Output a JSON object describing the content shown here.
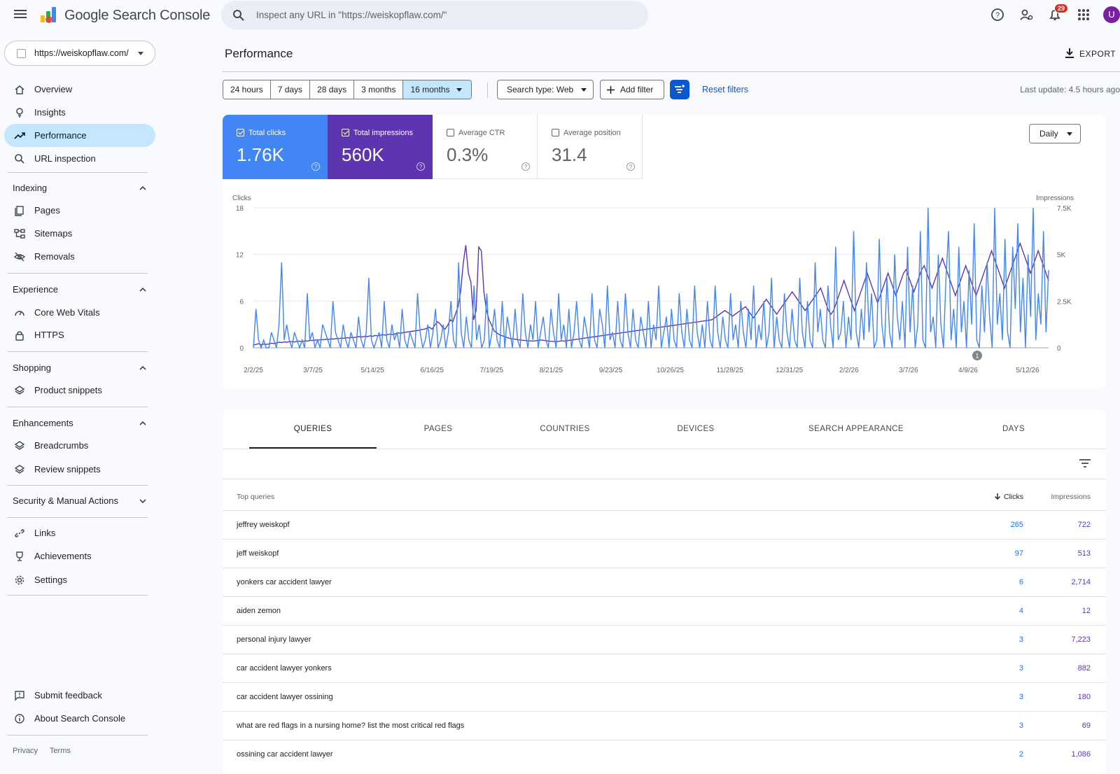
{
  "app": {
    "title": "Google Search Console"
  },
  "search": {
    "placeholder": "Inspect any URL in \"https://weiskopflaw.com/\""
  },
  "topbar": {
    "notifications_count": "29",
    "avatar_letter": "U"
  },
  "property": {
    "url": "https://weiskopflaw.com/"
  },
  "sidebar": {
    "items": [
      {
        "label": "Overview",
        "icon": "home-icon"
      },
      {
        "label": "Insights",
        "icon": "lightbulb-icon"
      },
      {
        "label": "Performance",
        "icon": "trending-up-icon",
        "active": true
      },
      {
        "label": "URL inspection",
        "icon": "search-icon"
      }
    ],
    "sections": [
      {
        "label": "Indexing",
        "items": [
          {
            "label": "Pages"
          },
          {
            "label": "Sitemaps"
          },
          {
            "label": "Removals"
          }
        ]
      },
      {
        "label": "Experience",
        "items": [
          {
            "label": "Core Web Vitals"
          },
          {
            "label": "HTTPS"
          }
        ]
      },
      {
        "label": "Shopping",
        "items": [
          {
            "label": "Product snippets"
          }
        ]
      },
      {
        "label": "Enhancements",
        "items": [
          {
            "label": "Breadcrumbs"
          },
          {
            "label": "Review snippets"
          }
        ]
      },
      {
        "label": "Security & Manual Actions",
        "items": []
      }
    ],
    "bottom_items": [
      {
        "label": "Links"
      },
      {
        "label": "Achievements"
      },
      {
        "label": "Settings"
      }
    ],
    "footer_items": [
      {
        "label": "Submit feedback"
      },
      {
        "label": "About Search Console"
      }
    ],
    "footer_links": {
      "privacy": "Privacy",
      "terms": "Terms"
    }
  },
  "page": {
    "title": "Performance",
    "export_label": "EXPORT",
    "last_update": "Last update: 4.5 hours ago"
  },
  "filters": {
    "ranges": [
      "24 hours",
      "7 days",
      "28 days",
      "3 months",
      "16 months"
    ],
    "selected_range": "16 months",
    "search_type": "Search type: Web",
    "add_filter": "Add filter",
    "reset": "Reset filters"
  },
  "metrics": [
    {
      "label": "Total clicks",
      "value": "1.76K",
      "checked": true,
      "color": "#4285f4"
    },
    {
      "label": "Total impressions",
      "value": "560K",
      "checked": true,
      "color": "#5e35b1"
    },
    {
      "label": "Average CTR",
      "value": "0.3%",
      "checked": false
    },
    {
      "label": "Average position",
      "value": "31.4",
      "checked": false
    }
  ],
  "granularity": "Daily",
  "chart_data": {
    "type": "line",
    "xlabel": "",
    "ylabel_left": "Clicks",
    "ylabel_right": "Impressions",
    "y_left_ticks": [
      "0",
      "6",
      "12",
      "18"
    ],
    "y_left_lim": [
      0,
      18
    ],
    "y_right_ticks": [
      "0",
      "2.5K",
      "5K",
      "7.5K"
    ],
    "y_right_lim": [
      0,
      7500
    ],
    "x_ticks": [
      "2/2/25",
      "3/7/25",
      "5/14/25",
      "6/16/25",
      "7/19/25",
      "8/21/25",
      "9/23/25",
      "10/26/25",
      "11/28/25",
      "12/31/25",
      "2/2/26",
      "3/7/26",
      "4/9/26",
      "5/12/26"
    ],
    "annotation": "1",
    "series": [
      {
        "name": "Clicks",
        "color": "#4285f4",
        "axis": "left",
        "values": [
          0,
          5,
          1,
          0,
          1,
          0,
          0,
          2,
          1,
          0,
          3,
          11,
          1,
          3,
          1,
          0,
          2,
          1,
          0,
          1,
          0,
          7,
          1,
          2,
          0,
          1,
          0,
          3,
          2,
          1,
          0,
          6,
          2,
          1,
          0,
          3,
          1,
          0,
          2,
          1,
          0,
          4,
          1,
          0,
          2,
          9,
          1,
          0,
          1,
          2,
          0,
          6,
          1,
          0,
          3,
          1,
          2,
          0,
          5,
          1,
          0,
          2,
          1,
          0,
          7,
          2,
          0,
          1,
          3,
          0,
          2,
          5,
          0,
          1,
          3,
          0,
          2,
          6,
          1,
          0,
          11,
          2,
          0,
          4,
          1,
          0,
          8,
          1,
          3,
          0,
          1,
          7,
          0,
          2,
          5,
          1,
          0,
          6,
          0,
          4,
          2,
          0,
          5,
          1,
          0,
          7,
          2,
          0,
          3,
          1,
          6,
          0,
          2,
          4,
          1,
          0,
          5,
          2,
          0,
          7,
          1,
          3,
          0,
          5,
          0,
          2,
          6,
          1,
          0,
          4,
          2,
          0,
          7,
          1,
          0,
          5,
          3,
          0,
          8,
          1,
          2,
          0,
          6,
          1,
          0,
          7,
          2,
          0,
          5,
          1,
          0,
          4,
          2,
          0,
          6,
          0,
          3,
          1,
          8,
          0,
          2,
          4,
          0,
          5,
          1,
          0,
          7,
          2,
          0,
          5,
          1,
          0,
          8,
          2,
          0,
          3,
          0,
          6,
          1,
          0,
          8,
          2,
          0,
          4,
          1,
          0,
          7,
          1,
          3,
          0,
          6,
          2,
          0,
          5,
          1,
          8,
          0,
          3,
          1,
          6,
          0,
          2,
          9,
          0,
          4,
          1,
          0,
          7,
          2,
          0,
          5,
          1,
          0,
          9,
          2,
          0,
          6,
          1,
          0,
          11,
          2,
          5,
          1,
          0,
          8,
          3,
          0,
          13,
          1,
          2,
          6,
          0,
          4,
          1,
          15,
          2,
          0,
          5,
          1,
          11,
          2,
          7,
          0,
          1,
          14,
          3,
          0,
          9,
          2,
          0,
          12,
          4,
          1,
          6,
          0,
          13,
          2,
          8,
          0,
          3,
          15,
          1,
          0,
          18,
          2,
          4,
          0,
          12,
          3,
          0,
          9,
          15,
          1,
          5,
          0,
          13,
          2,
          6,
          0,
          10,
          3,
          16,
          1,
          0,
          8,
          2,
          11,
          4,
          0,
          18,
          3,
          7,
          1,
          14,
          2,
          0,
          13,
          5,
          16,
          2,
          9,
          0,
          12,
          4,
          18,
          1,
          7,
          3,
          15,
          2,
          10
        ]
      },
      {
        "name": "Impressions",
        "color": "#5e35b1",
        "axis": "right",
        "values": [
          150,
          180,
          220,
          160,
          200,
          180,
          210,
          250,
          230,
          260,
          300,
          280,
          320,
          300,
          340,
          330,
          310,
          360,
          350,
          330,
          380,
          360,
          400,
          390,
          420,
          410,
          440,
          430,
          460,
          450,
          480,
          470,
          500,
          490,
          520,
          510,
          540,
          530,
          560,
          550,
          580,
          600,
          580,
          620,
          600,
          640,
          620,
          660,
          640,
          680,
          700,
          680,
          720,
          740,
          700,
          760,
          800,
          780,
          820,
          840,
          860,
          880,
          900,
          920,
          940,
          980,
          1000,
          1050,
          1100,
          1000,
          1200,
          1400,
          1300,
          1100,
          1000,
          1200,
          1500,
          1400,
          1800,
          2200,
          3000,
          4500,
          5500,
          4000,
          3500,
          1500,
          2000,
          5400,
          5200,
          3000,
          2000,
          1500,
          1200,
          900,
          800,
          700,
          650,
          600,
          550,
          500,
          480,
          460,
          440,
          420,
          400,
          390,
          380,
          370,
          360,
          380,
          400,
          420,
          400,
          380,
          360,
          350,
          340,
          330,
          350,
          370,
          360,
          380,
          400,
          420,
          440,
          460,
          480,
          500,
          520,
          540,
          560,
          580,
          600,
          620,
          640,
          660,
          680,
          700,
          720,
          740,
          760,
          780,
          800,
          820,
          840,
          860,
          880,
          900,
          920,
          940,
          960,
          980,
          1000,
          1020,
          1040,
          1060,
          1080,
          1100,
          1120,
          1140,
          1160,
          1180,
          1200,
          1220,
          1240,
          1260,
          1280,
          1300,
          1320,
          1340,
          1360,
          1380,
          1400,
          1420,
          1440,
          1460,
          1480,
          1500,
          1600,
          1700,
          1800,
          1900,
          2000,
          1900,
          1800,
          1700,
          1800,
          1900,
          2000,
          2100,
          2200,
          2000,
          1800,
          1600,
          1800,
          2000,
          2200,
          2400,
          2600,
          2400,
          2200,
          2000,
          1800,
          2000,
          2200,
          2400,
          2600,
          2800,
          3000,
          2800,
          2600,
          2400,
          2200,
          2000,
          2200,
          2400,
          2600,
          2800,
          3000,
          3200,
          2800,
          2400,
          2000,
          1800,
          2000,
          2400,
          2800,
          3200,
          3600,
          3200,
          2800,
          2400,
          2000,
          2400,
          2800,
          3200,
          3600,
          4000,
          3600,
          3200,
          2800,
          2400,
          2800,
          3200,
          3600,
          4000,
          3600,
          3200,
          2800,
          3200,
          3600,
          4000,
          4200,
          3800,
          3400,
          3000,
          3400,
          3800,
          4200,
          4400,
          4000,
          3600,
          3200,
          3600,
          4000,
          4400,
          4800,
          4400,
          4000,
          3600,
          3200,
          2800,
          3200,
          3600,
          4000,
          4400,
          4000,
          3600,
          3200,
          2800,
          3200,
          3600,
          4000,
          4400,
          4800,
          5200,
          4800,
          4400,
          4000,
          3600,
          3200,
          3600,
          4000,
          4400,
          4800,
          5200,
          5600,
          5200,
          4800,
          4400,
          4000,
          4400,
          4800,
          5200,
          4800,
          4400,
          4000,
          3600
        ]
      }
    ]
  },
  "tabs": [
    "QUERIES",
    "PAGES",
    "COUNTRIES",
    "DEVICES",
    "SEARCH APPEARANCE",
    "DAYS"
  ],
  "table": {
    "header_query": "Top queries",
    "header_clicks": "Clicks",
    "header_impressions": "Impressions",
    "rows": [
      {
        "query": "jeffrey weiskopf",
        "clicks": "265",
        "impressions": "722"
      },
      {
        "query": "jeff weiskopf",
        "clicks": "97",
        "impressions": "513"
      },
      {
        "query": "yonkers car accident lawyer",
        "clicks": "6",
        "impressions": "2,714"
      },
      {
        "query": "aiden zemon",
        "clicks": "4",
        "impressions": "12"
      },
      {
        "query": "personal injury lawyer",
        "clicks": "3",
        "impressions": "7,223"
      },
      {
        "query": "car accident lawyer yonkers",
        "clicks": "3",
        "impressions": "882"
      },
      {
        "query": "car accident lawyer ossining",
        "clicks": "3",
        "impressions": "180"
      },
      {
        "query": "what are red flags in a nursing home? list the most critical red flags",
        "clicks": "3",
        "impressions": "69"
      },
      {
        "query": "ossining car accident lawyer",
        "clicks": "2",
        "impressions": "1,086"
      }
    ]
  }
}
